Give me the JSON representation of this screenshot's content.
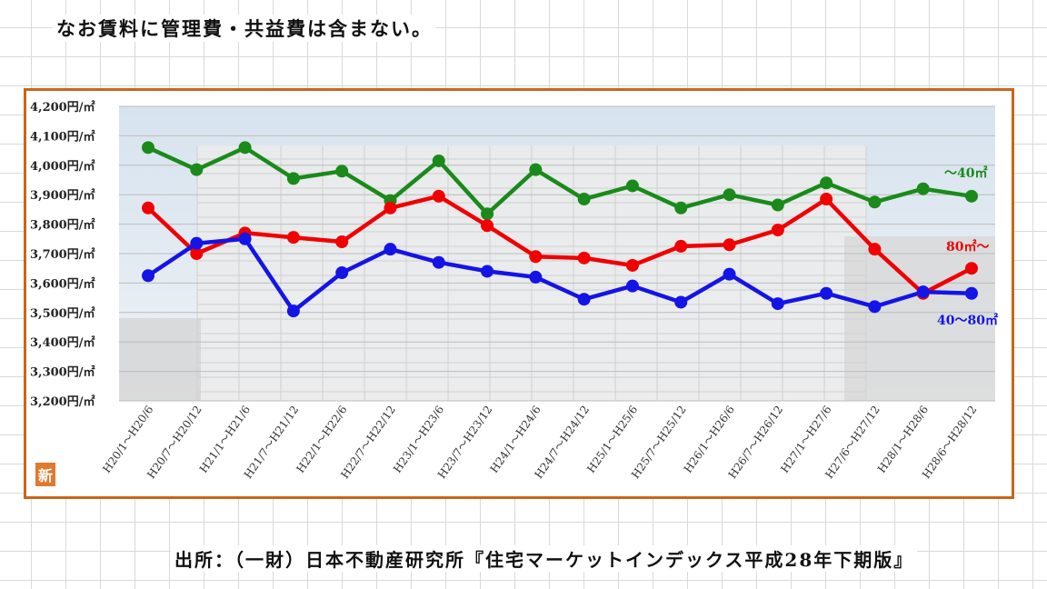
{
  "header": {
    "note": "なお賃料に管理費・共益費は含まない。"
  },
  "footer": {
    "source": "出所：（一財）日本不動産研究所『住宅マーケットインデックス平成28年下期版』"
  },
  "badge": {
    "label": "新"
  },
  "colors": {
    "frame": "#c8661a",
    "small": "#1a8a1a",
    "large": "#f00000",
    "mid": "#1414e6"
  },
  "chart_data": {
    "type": "line",
    "categories": [
      "H20/1～H20/6",
      "H20/7～H20/12",
      "H21/1～H21/6",
      "H21/7～H21/12",
      "H22/1～H22/6",
      "H22/7～H22/12",
      "H23/1～H23/6",
      "H23/7～H23/12",
      "H24/1～H24/6",
      "H24/7～H24/12",
      "H25/1～H25/6",
      "H25/7～H25/12",
      "H26/1～H26/6",
      "H26/7～H26/12",
      "H27/1～H27/6",
      "H27/6～H27/12",
      "H28/1～H28/6",
      "H28/6～H28/12"
    ],
    "ylim": [
      3200,
      4200
    ],
    "yticks": [
      "3,200円/㎡",
      "3,300円/㎡",
      "3,400円/㎡",
      "3,500円/㎡",
      "3,600円/㎡",
      "3,700円/㎡",
      "3,800円/㎡",
      "3,900円/㎡",
      "4,000円/㎡",
      "4,100円/㎡",
      "4,200円/㎡"
    ],
    "series": [
      {
        "name": "～40㎡",
        "color": "#1a8a1a",
        "values": [
          4060,
          3985,
          4060,
          3955,
          3980,
          3880,
          4015,
          3835,
          3985,
          3885,
          3930,
          3855,
          3900,
          3865,
          3940,
          3875,
          3920,
          3895
        ]
      },
      {
        "name": "80㎡～",
        "color": "#f00000",
        "values": [
          3855,
          3700,
          3770,
          3755,
          3740,
          3855,
          3895,
          3795,
          3690,
          3685,
          3660,
          3725,
          3730,
          3780,
          3885,
          3715,
          3565,
          3650
        ]
      },
      {
        "name": "40～80㎡",
        "color": "#1414e6",
        "values": [
          3625,
          3735,
          3750,
          3505,
          3635,
          3715,
          3670,
          3640,
          3620,
          3545,
          3590,
          3535,
          3630,
          3530,
          3565,
          3520,
          3570,
          3565
        ]
      }
    ]
  }
}
